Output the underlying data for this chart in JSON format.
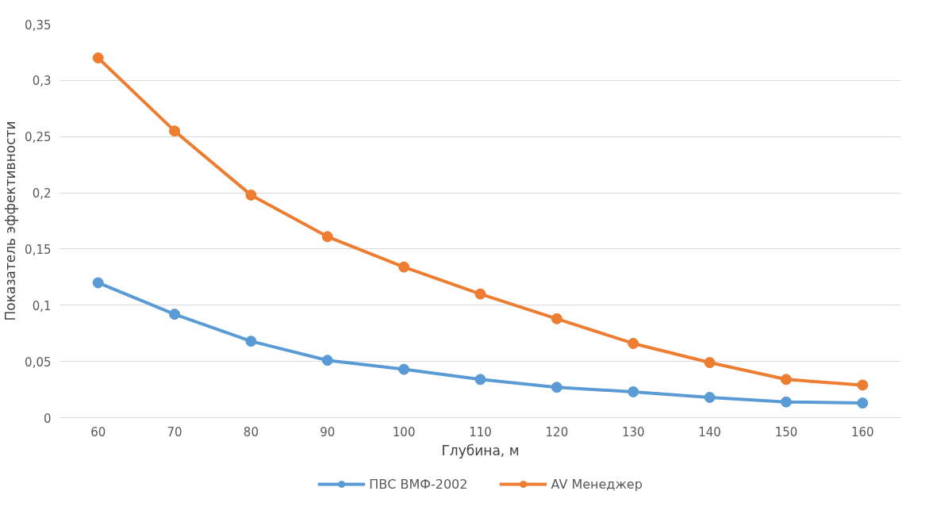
{
  "chart_data": {
    "type": "line",
    "xlabel": "Глубина, м",
    "ylabel": "Показатель эффективности",
    "categories": [
      "60",
      "70",
      "80",
      "90",
      "100",
      "110",
      "120",
      "130",
      "140",
      "150",
      "160"
    ],
    "series": [
      {
        "name": "ПВС ВМФ-2002",
        "color": "#5b9bd5",
        "values": [
          0.12,
          0.092,
          0.068,
          0.051,
          0.043,
          0.034,
          0.027,
          0.023,
          0.018,
          0.014,
          0.013
        ]
      },
      {
        "name": "AV Менеджер",
        "color": "#ed7d31",
        "values": [
          0.32,
          0.255,
          0.198,
          0.161,
          0.134,
          0.11,
          0.088,
          0.066,
          0.049,
          0.034,
          0.029
        ]
      }
    ],
    "ylim": [
      0,
      0.35
    ],
    "yticks": [
      {
        "value": 0,
        "label": "0"
      },
      {
        "value": 0.05,
        "label": "0,05"
      },
      {
        "value": 0.1,
        "label": "0,1"
      },
      {
        "value": 0.15,
        "label": "0,15"
      },
      {
        "value": 0.2,
        "label": "0,2"
      },
      {
        "value": 0.25,
        "label": "0,25"
      },
      {
        "value": 0.3,
        "label": "0,3"
      },
      {
        "value": 0.35,
        "label": "0,35"
      }
    ],
    "grid": "y",
    "legend": "bottom",
    "marker": "circle",
    "line_style": "solid"
  }
}
